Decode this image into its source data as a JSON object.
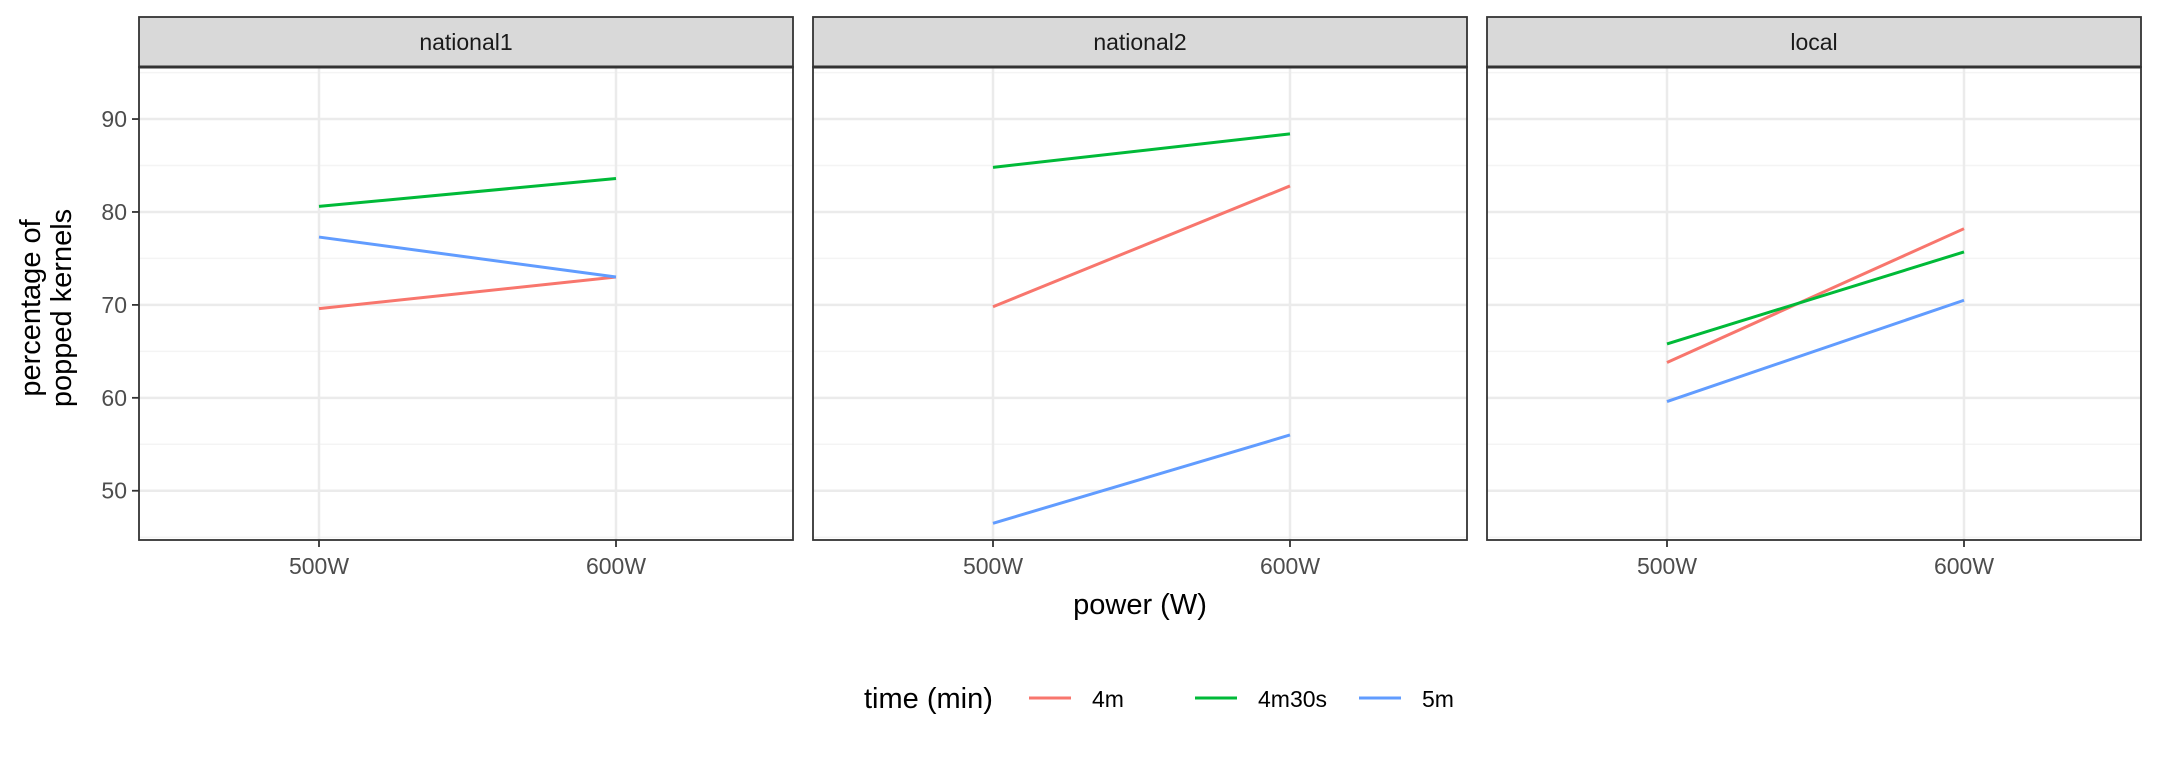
{
  "chart_data": {
    "type": "line",
    "facets": [
      {
        "name": "national1",
        "series": [
          {
            "name": "4m",
            "values": [
              69.6,
              73.0
            ]
          },
          {
            "name": "4m30s",
            "values": [
              80.6,
              83.6
            ]
          },
          {
            "name": "5m",
            "values": [
              77.3,
              73.0
            ]
          }
        ]
      },
      {
        "name": "national2",
        "series": [
          {
            "name": "4m",
            "values": [
              69.8,
              82.8
            ]
          },
          {
            "name": "4m30s",
            "values": [
              84.8,
              88.4
            ]
          },
          {
            "name": "5m",
            "values": [
              46.5,
              56.0
            ]
          }
        ]
      },
      {
        "name": "local",
        "series": [
          {
            "name": "4m",
            "values": [
              63.8,
              78.2
            ]
          },
          {
            "name": "4m30s",
            "values": [
              65.8,
              75.7
            ]
          },
          {
            "name": "5m",
            "values": [
              59.6,
              70.5
            ]
          }
        ]
      }
    ],
    "categories": [
      "500W",
      "600W"
    ],
    "xlabel": "power (W)",
    "ylabel_lines": [
      "percentage of",
      "popped kernels"
    ],
    "ylim": [
      44.7,
      95.6
    ],
    "yticks": [
      50,
      60,
      70,
      80,
      90
    ],
    "grid": true,
    "legend": {
      "title": "time (min)",
      "placement": "bottom",
      "entries": [
        "4m",
        "4m30s",
        "5m"
      ]
    },
    "colors": {
      "4m": "#F8766D",
      "4m30s": "#00BA38",
      "5m": "#619CFF",
      "strip_bg": "#D9D9D9",
      "panel_border": "#333333",
      "grid_major": "#EBEBEB",
      "axis_text": "#4D4D4D"
    }
  }
}
